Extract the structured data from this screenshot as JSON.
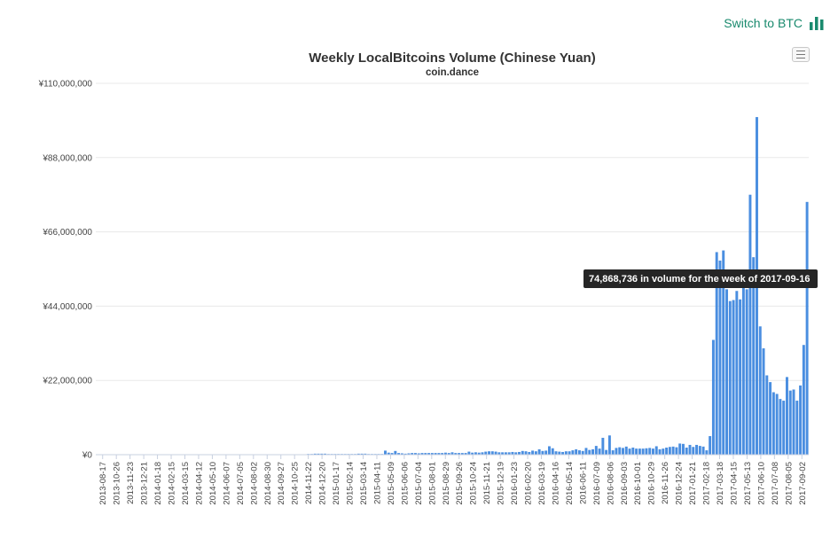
{
  "header": {
    "switch_label": "Switch to BTC",
    "switch_icon": "bar-chart-icon",
    "accent": "#1a8a6e"
  },
  "menu": {
    "icon": "menu-icon"
  },
  "tooltip": {
    "text": "74,868,736 in volume for the week of 2017-09-16"
  },
  "colors": {
    "bar": "#4a8ee0",
    "grid": "#e8e8e8",
    "tooltip_bg": "#262626"
  },
  "chart_data": {
    "type": "bar",
    "title": "Weekly LocalBitcoins Volume (Chinese Yuan)",
    "subtitle": "coin.dance",
    "xlabel": "",
    "ylabel": "",
    "ylim": [
      0,
      110000000
    ],
    "y_ticks": [
      0,
      22000000,
      44000000,
      66000000,
      88000000,
      110000000
    ],
    "y_tick_labels": [
      "¥0",
      "¥22,000,000",
      "¥44,000,000",
      "¥66,000,000",
      "¥88,000,000",
      "¥110,000,000"
    ],
    "x_tick_labels": [
      "2013-08-17",
      "2013-10-26",
      "2013-11-23",
      "2013-12-21",
      "2014-01-18",
      "2014-02-15",
      "2014-03-15",
      "2014-04-12",
      "2014-05-10",
      "2014-06-07",
      "2014-07-05",
      "2014-08-02",
      "2014-08-30",
      "2014-09-27",
      "2014-10-25",
      "2014-11-22",
      "2014-12-20",
      "2015-01-17",
      "2015-02-14",
      "2015-03-14",
      "2015-04-11",
      "2015-05-09",
      "2015-06-06",
      "2015-07-04",
      "2015-08-01",
      "2015-08-29",
      "2015-09-26",
      "2015-10-24",
      "2015-11-21",
      "2015-12-19",
      "2016-01-23",
      "2016-02-20",
      "2016-03-19",
      "2016-04-16",
      "2016-05-14",
      "2016-06-11",
      "2016-07-09",
      "2016-08-06",
      "2016-09-03",
      "2016-10-01",
      "2016-10-29",
      "2016-11-26",
      "2016-12-24",
      "2017-01-21",
      "2017-02-18",
      "2017-03-18",
      "2017-04-15",
      "2017-05-13",
      "2017-06-10",
      "2017-07-08",
      "2017-08-05",
      "2017-09-02"
    ],
    "grid": true,
    "legend": "none",
    "series": [
      {
        "values": [
          100000,
          0,
          0,
          0,
          0,
          100000,
          0,
          0,
          100000,
          0,
          0,
          0,
          50000,
          0,
          0,
          0,
          0,
          0,
          0,
          0,
          0,
          0,
          0,
          0,
          0,
          0,
          0,
          0,
          0,
          0,
          0,
          0,
          0,
          0,
          0,
          0,
          0,
          0,
          0,
          0,
          0,
          0,
          0,
          0,
          0,
          0,
          0,
          0,
          0,
          0,
          0,
          0,
          0,
          0,
          0,
          0,
          0,
          0,
          0,
          100000,
          100000,
          100000,
          100000,
          200000,
          200000,
          300000,
          300000,
          300000,
          300000,
          200000,
          200000,
          200000,
          200000,
          200000,
          200000,
          200000,
          200000,
          200000,
          300000,
          300000,
          300000,
          200000,
          200000,
          200000,
          200000,
          200000,
          1200000,
          600000,
          500000,
          1100000,
          500000,
          400000,
          300000,
          400000,
          500000,
          500000,
          400000,
          500000,
          500000,
          500000,
          500000,
          500000,
          500000,
          500000,
          600000,
          500000,
          700000,
          500000,
          500000,
          500000,
          500000,
          900000,
          600000,
          700000,
          600000,
          700000,
          900000,
          1000000,
          1000000,
          900000,
          700000,
          700000,
          700000,
          700000,
          800000,
          700000,
          800000,
          1100000,
          1000000,
          800000,
          1200000,
          1000000,
          1600000,
          1100000,
          1200000,
          2500000,
          1900000,
          1000000,
          900000,
          800000,
          1000000,
          1000000,
          1300000,
          1600000,
          1300000,
          1100000,
          2000000,
          1400000,
          1600000,
          2600000,
          1800000,
          5000000,
          1400000,
          5700000,
          1300000,
          2000000,
          2200000,
          2000000,
          2400000,
          1800000,
          2100000,
          1800000,
          1800000,
          1800000,
          1900000,
          2000000,
          1800000,
          2500000,
          1600000,
          1800000,
          2100000,
          2300000,
          2400000,
          2200000,
          3300000,
          3200000,
          2100000,
          2900000,
          2300000,
          2900000,
          2600000,
          2400000,
          1300000,
          5500000,
          34000000,
          60000000,
          57500000,
          60500000,
          49000000,
          45500000,
          45800000,
          48500000,
          46000000,
          52000000,
          49000000,
          77000000,
          58500000,
          100000000,
          38000000,
          31500000,
          23500000,
          21500000,
          18500000,
          18000000,
          16500000,
          16000000,
          23000000,
          19000000,
          19300000,
          16000000,
          20500000,
          32500000,
          74868736
        ]
      }
    ]
  }
}
